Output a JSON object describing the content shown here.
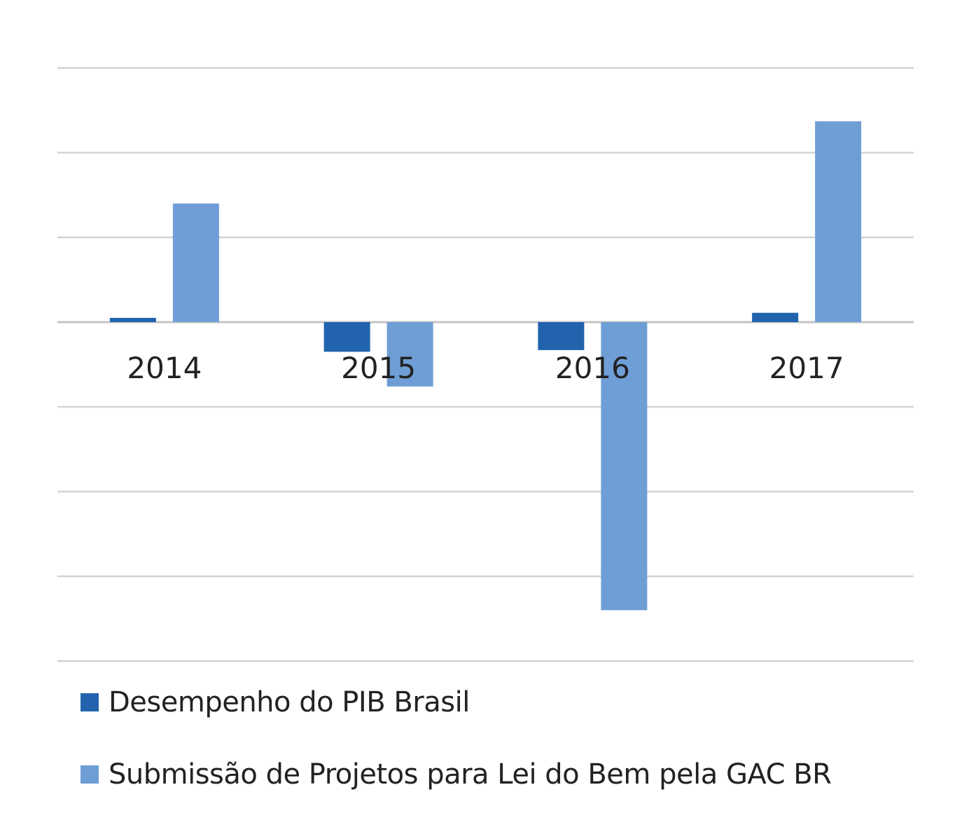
{
  "chart_data": {
    "type": "bar",
    "title": "",
    "xlabel": "",
    "ylabel": "",
    "categories": [
      "2014",
      "2015",
      "2016",
      "2017"
    ],
    "series": [
      {
        "name": "Desempenho do PIB Brasil",
        "color": "#2163ad",
        "values": [
          0.5,
          -3.5,
          -3.3,
          1.1
        ]
      },
      {
        "name": "Submissão de Projetos para Lei do Bem pela GAC BR",
        "color": "#6f9ed6",
        "values": [
          14,
          -7.6,
          -34,
          23.7
        ]
      }
    ],
    "ylim": [
      -40,
      30
    ],
    "gridlines": true,
    "axis_tick_labels_shown": false,
    "legend": "bottom"
  }
}
